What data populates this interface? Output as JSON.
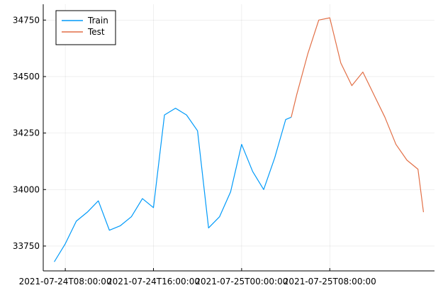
{
  "chart_data": {
    "type": "line",
    "grid": true,
    "legend_position": "top-left",
    "x_axis": {
      "type": "datetime",
      "range": [
        "2021-07-24T06:00:00",
        "2021-07-25T17:30:00"
      ],
      "ticks": [
        {
          "value": "2021-07-24T08:00:00",
          "label": "2021-07-24T08:00:00"
        },
        {
          "value": "2021-07-24T16:00:00",
          "label": "2021-07-24T16:00:00"
        },
        {
          "value": "2021-07-25T00:00:00",
          "label": "2021-07-25T00:00:00"
        },
        {
          "value": "2021-07-25T08:00:00",
          "label": "2021-07-25T08:00:00"
        }
      ]
    },
    "y_axis": {
      "range": [
        33640,
        34820
      ],
      "ticks": [
        {
          "value": 33750,
          "label": "33750"
        },
        {
          "value": 34000,
          "label": "34000"
        },
        {
          "value": 34250,
          "label": "34250"
        },
        {
          "value": 34500,
          "label": "34500"
        },
        {
          "value": 34750,
          "label": "34750"
        }
      ]
    },
    "series": [
      {
        "name": "Train",
        "color": "#009af9",
        "points": [
          [
            "2021-07-24T07:00:00",
            33680
          ],
          [
            "2021-07-24T08:00:00",
            33760
          ],
          [
            "2021-07-24T09:00:00",
            33860
          ],
          [
            "2021-07-24T10:00:00",
            33900
          ],
          [
            "2021-07-24T11:00:00",
            33950
          ],
          [
            "2021-07-24T12:00:00",
            33820
          ],
          [
            "2021-07-24T13:00:00",
            33840
          ],
          [
            "2021-07-24T14:00:00",
            33880
          ],
          [
            "2021-07-24T15:00:00",
            33960
          ],
          [
            "2021-07-24T16:00:00",
            33920
          ],
          [
            "2021-07-24T17:00:00",
            34330
          ],
          [
            "2021-07-24T18:00:00",
            34360
          ],
          [
            "2021-07-24T19:00:00",
            34330
          ],
          [
            "2021-07-24T20:00:00",
            34260
          ],
          [
            "2021-07-24T21:00:00",
            33830
          ],
          [
            "2021-07-24T22:00:00",
            33880
          ],
          [
            "2021-07-24T23:00:00",
            33990
          ],
          [
            "2021-07-25T00:00:00",
            34200
          ],
          [
            "2021-07-25T01:00:00",
            34080
          ],
          [
            "2021-07-25T02:00:00",
            34000
          ],
          [
            "2021-07-25T03:00:00",
            34140
          ],
          [
            "2021-07-25T04:00:00",
            34310
          ],
          [
            "2021-07-25T04:30:00",
            34320
          ]
        ]
      },
      {
        "name": "Test",
        "color": "#e26f46",
        "points": [
          [
            "2021-07-25T04:30:00",
            34320
          ],
          [
            "2021-07-25T05:00:00",
            34420
          ],
          [
            "2021-07-25T06:00:00",
            34600
          ],
          [
            "2021-07-25T07:00:00",
            34750
          ],
          [
            "2021-07-25T08:00:00",
            34760
          ],
          [
            "2021-07-25T09:00:00",
            34560
          ],
          [
            "2021-07-25T10:00:00",
            34460
          ],
          [
            "2021-07-25T11:00:00",
            34520
          ],
          [
            "2021-07-25T12:00:00",
            34420
          ],
          [
            "2021-07-25T13:00:00",
            34320
          ],
          [
            "2021-07-25T14:00:00",
            34200
          ],
          [
            "2021-07-25T15:00:00",
            34130
          ],
          [
            "2021-07-25T16:00:00",
            34090
          ],
          [
            "2021-07-25T16:30:00",
            33900
          ]
        ]
      }
    ]
  }
}
